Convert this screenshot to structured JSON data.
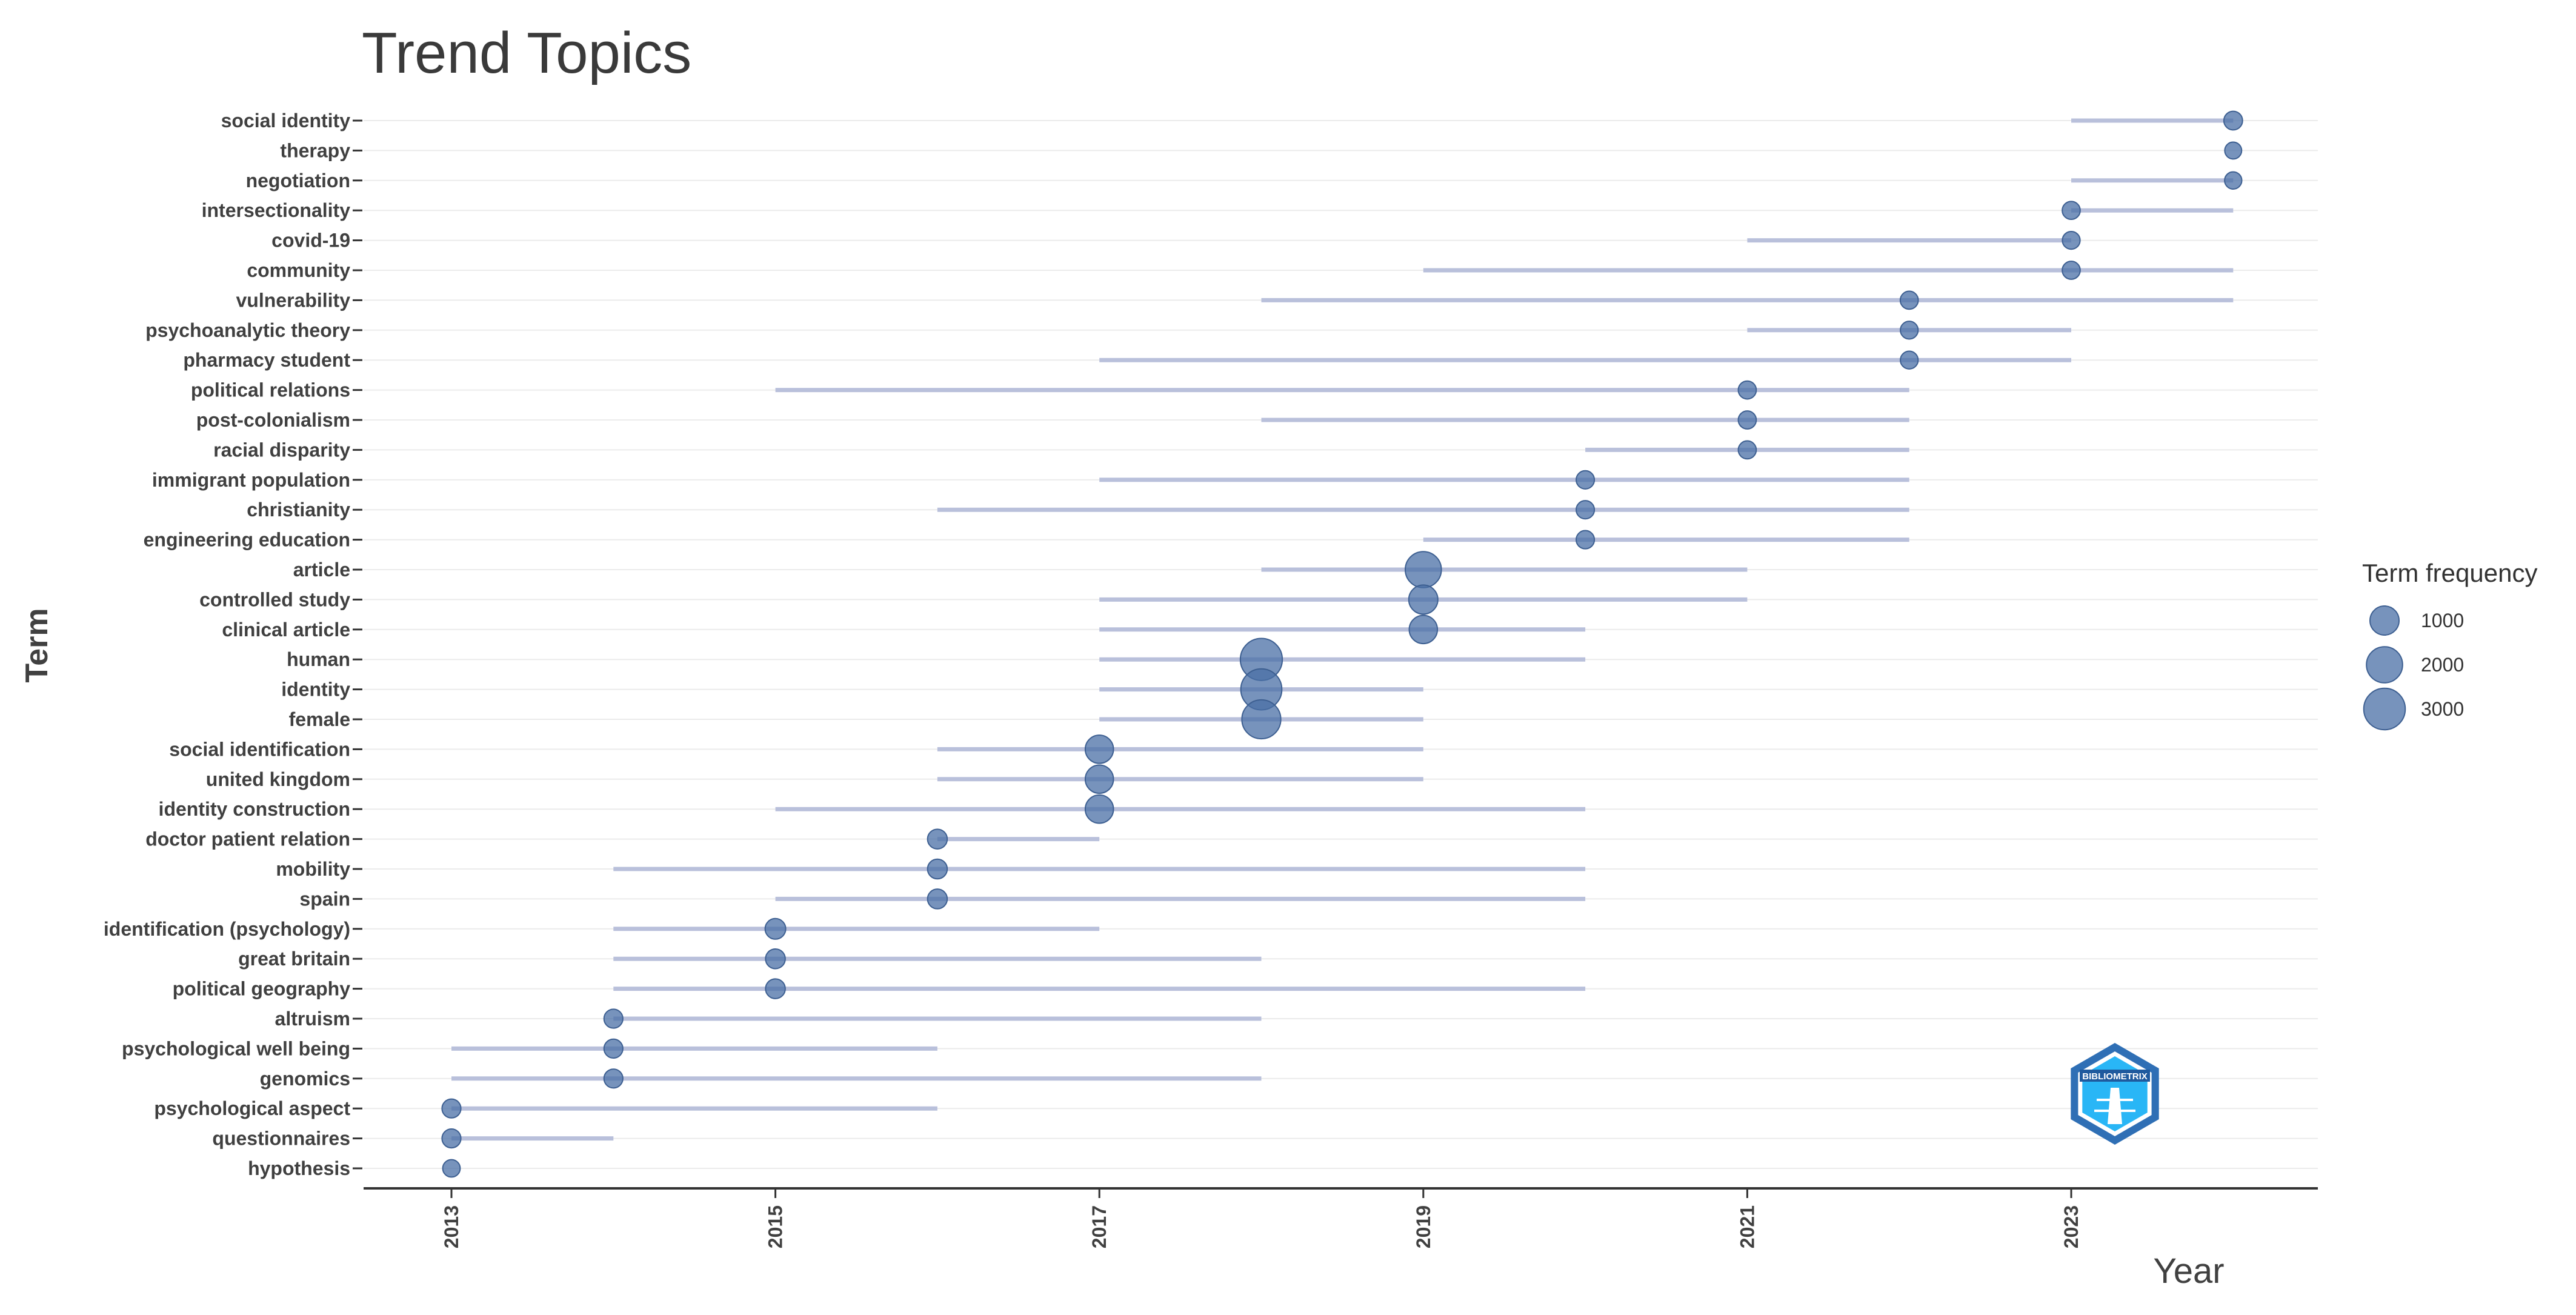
{
  "chart_data": {
    "type": "scatter",
    "title": "Trend Topics",
    "xlabel": "Year",
    "ylabel": "Term",
    "xlim": [
      2012.5,
      2024.6
    ],
    "x_ticks": [
      "2013",
      "2015",
      "2017",
      "2019",
      "2021",
      "2023"
    ],
    "grid": "horizontal",
    "legend_position": "right",
    "colors": {
      "point": "#4a6fa5",
      "range_line": "#b9c0db",
      "grid": "#ebebeb",
      "axis": "#333333",
      "logo_dark": "#2f6fb5",
      "logo_light": "#29b6f6"
    },
    "legend": {
      "title": "Term frequency",
      "items": [
        {
          "label": "1000",
          "value": 1000
        },
        {
          "label": "2000",
          "value": 2000
        },
        {
          "label": "3000",
          "value": 3000
        }
      ]
    },
    "logo": {
      "text": "BIBLIOMETRIX"
    },
    "terms": [
      {
        "term": "social identity",
        "start": 2023,
        "median": 2024,
        "end": 2024,
        "freq": 150
      },
      {
        "term": "therapy",
        "start": 2024,
        "median": 2024,
        "end": 2024,
        "freq": 80
      },
      {
        "term": "negotiation",
        "start": 2023,
        "median": 2024,
        "end": 2024,
        "freq": 90
      },
      {
        "term": "intersectionality",
        "start": 2023,
        "median": 2023,
        "end": 2024,
        "freq": 120
      },
      {
        "term": "covid-19",
        "start": 2021,
        "median": 2023,
        "end": 2023,
        "freq": 110
      },
      {
        "term": "community",
        "start": 2019,
        "median": 2023,
        "end": 2024,
        "freq": 120
      },
      {
        "term": "vulnerability",
        "start": 2018,
        "median": 2022,
        "end": 2024,
        "freq": 120
      },
      {
        "term": "psychoanalytic theory",
        "start": 2021,
        "median": 2022,
        "end": 2023,
        "freq": 110
      },
      {
        "term": "pharmacy student",
        "start": 2017,
        "median": 2022,
        "end": 2023,
        "freq": 110
      },
      {
        "term": "political relations",
        "start": 2015,
        "median": 2021,
        "end": 2022,
        "freq": 120
      },
      {
        "term": "post-colonialism",
        "start": 2018,
        "median": 2021,
        "end": 2022,
        "freq": 120
      },
      {
        "term": "racial disparity",
        "start": 2020,
        "median": 2021,
        "end": 2022,
        "freq": 120
      },
      {
        "term": "immigrant population",
        "start": 2017,
        "median": 2020,
        "end": 2022,
        "freq": 130
      },
      {
        "term": "christianity",
        "start": 2016,
        "median": 2020,
        "end": 2022,
        "freq": 130
      },
      {
        "term": "engineering education",
        "start": 2019,
        "median": 2020,
        "end": 2022,
        "freq": 130
      },
      {
        "term": "article",
        "start": 2018,
        "median": 2019,
        "end": 2021,
        "freq": 2000
      },
      {
        "term": "controlled study",
        "start": 2017,
        "median": 2019,
        "end": 2021,
        "freq": 1000
      },
      {
        "term": "clinical article",
        "start": 2017,
        "median": 2019,
        "end": 2020,
        "freq": 900
      },
      {
        "term": "human",
        "start": 2017,
        "median": 2018,
        "end": 2020,
        "freq": 3100
      },
      {
        "term": "identity",
        "start": 2017,
        "median": 2018,
        "end": 2019,
        "freq": 2900
      },
      {
        "term": "female",
        "start": 2017,
        "median": 2018,
        "end": 2019,
        "freq": 2500
      },
      {
        "term": "social identification",
        "start": 2016,
        "median": 2017,
        "end": 2019,
        "freq": 900
      },
      {
        "term": "united kingdom",
        "start": 2016,
        "median": 2017,
        "end": 2019,
        "freq": 900
      },
      {
        "term": "identity construction",
        "start": 2015,
        "median": 2017,
        "end": 2020,
        "freq": 900
      },
      {
        "term": "doctor patient relation",
        "start": 2016,
        "median": 2016,
        "end": 2017,
        "freq": 200
      },
      {
        "term": "mobility",
        "start": 2014,
        "median": 2016,
        "end": 2020,
        "freq": 200
      },
      {
        "term": "spain",
        "start": 2015,
        "median": 2016,
        "end": 2020,
        "freq": 200
      },
      {
        "term": "identification (psychology)",
        "start": 2014,
        "median": 2015,
        "end": 2017,
        "freq": 250
      },
      {
        "term": "great britain",
        "start": 2014,
        "median": 2015,
        "end": 2018,
        "freq": 200
      },
      {
        "term": "political geography",
        "start": 2014,
        "median": 2015,
        "end": 2020,
        "freq": 200
      },
      {
        "term": "altruism",
        "start": 2014,
        "median": 2014,
        "end": 2018,
        "freq": 160
      },
      {
        "term": "psychological well being",
        "start": 2013,
        "median": 2014,
        "end": 2016,
        "freq": 160
      },
      {
        "term": "genomics",
        "start": 2013,
        "median": 2014,
        "end": 2018,
        "freq": 160
      },
      {
        "term": "psychological aspect",
        "start": 2013,
        "median": 2013,
        "end": 2016,
        "freq": 160
      },
      {
        "term": "questionnaires",
        "start": 2013,
        "median": 2013,
        "end": 2014,
        "freq": 160
      },
      {
        "term": "hypothesis",
        "start": 2013,
        "median": 2013,
        "end": 2013,
        "freq": 100
      }
    ]
  }
}
